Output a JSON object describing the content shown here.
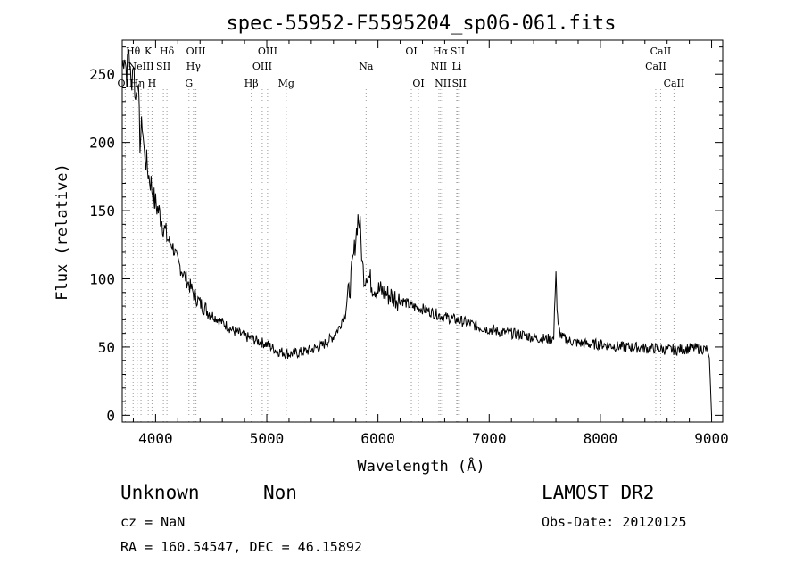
{
  "chart_data": {
    "type": "line",
    "title": "spec-55952-F5595204_sp06-061.fits",
    "xlabel": "Wavelength (Å)",
    "ylabel": "Flux (relative)",
    "xlim": [
      3700,
      9100
    ],
    "ylim": [
      -5,
      275
    ],
    "xticks": [
      4000,
      5000,
      6000,
      7000,
      8000,
      9000
    ],
    "yticks": [
      0,
      50,
      100,
      150,
      200,
      250
    ],
    "grid": false,
    "series": [
      {
        "x": [
          3700,
          3720,
          3740,
          3760,
          3780,
          3800,
          3820,
          3840,
          3860,
          3880,
          3900,
          3920,
          3940,
          3960,
          3980,
          4000,
          4050,
          4100,
          4150,
          4200,
          4250,
          4300,
          4350,
          4400,
          4500,
          4600,
          4700,
          4800,
          4900,
          5000,
          5100,
          5200,
          5300,
          5400,
          5500,
          5600,
          5650,
          5700,
          5750,
          5800,
          5820,
          5840,
          5860,
          5880,
          5900,
          5950,
          6000,
          6100,
          6200,
          6300,
          6400,
          6500,
          6600,
          6700,
          6800,
          6900,
          7000,
          7100,
          7200,
          7300,
          7400,
          7500,
          7580,
          7600,
          7610,
          7620,
          7640,
          7660,
          7700,
          7800,
          7900,
          8000,
          8100,
          8200,
          8300,
          8400,
          8500,
          8600,
          8700,
          8800,
          8900,
          8960,
          8980,
          9000
        ],
        "y": [
          255,
          265,
          250,
          270,
          240,
          260,
          230,
          250,
          200,
          215,
          190,
          185,
          175,
          170,
          160,
          155,
          145,
          130,
          125,
          112,
          104,
          96,
          88,
          82,
          74,
          68,
          62,
          58,
          55,
          52,
          47,
          45,
          46,
          48,
          51,
          58,
          64,
          75,
          95,
          130,
          145,
          138,
          110,
          100,
          105,
          95,
          92,
          88,
          85,
          80,
          78,
          75,
          72,
          70,
          68,
          65,
          63,
          61,
          60,
          59,
          57,
          56,
          56,
          108,
          78,
          65,
          60,
          57,
          55,
          53,
          52,
          52,
          51,
          50,
          50,
          49,
          49,
          48,
          48,
          49,
          49,
          48,
          42,
          0
        ]
      }
    ],
    "annotations": [
      {
        "x": 3727,
        "label": "OII",
        "row": 3
      },
      {
        "x": 3798,
        "label": "Hθ",
        "row": 1
      },
      {
        "x": 3835,
        "label": "Hη",
        "row": 3
      },
      {
        "x": 3869,
        "label": "NeIII",
        "row": 2
      },
      {
        "x": 3934,
        "label": "K",
        "row": 1
      },
      {
        "x": 3968,
        "label": "H",
        "row": 3
      },
      {
        "x": 4070,
        "label": "SII",
        "row": 2
      },
      {
        "x": 4102,
        "label": "Hδ",
        "row": 1
      },
      {
        "x": 4300,
        "label": "G",
        "row": 3
      },
      {
        "x": 4341,
        "label": "Hγ",
        "row": 2
      },
      {
        "x": 4363,
        "label": "OIII",
        "row": 1
      },
      {
        "x": 4861,
        "label": "Hβ",
        "row": 3
      },
      {
        "x": 4959,
        "label": "OIII",
        "row": 2
      },
      {
        "x": 5007,
        "label": "OIII",
        "row": 1
      },
      {
        "x": 5175,
        "label": "Mg",
        "row": 3
      },
      {
        "x": 5893,
        "label": "Na",
        "row": 2
      },
      {
        "x": 6300,
        "label": "OI",
        "row": 1
      },
      {
        "x": 6364,
        "label": "OI",
        "row": 3
      },
      {
        "x": 6548,
        "label": "NII",
        "row": 2
      },
      {
        "x": 6563,
        "label": "Hα",
        "row": 1
      },
      {
        "x": 6583,
        "label": "NII",
        "row": 3
      },
      {
        "x": 6708,
        "label": "Li",
        "row": 2
      },
      {
        "x": 6717,
        "label": "SII",
        "row": 1
      },
      {
        "x": 6731,
        "label": "SII",
        "row": 3
      },
      {
        "x": 8498,
        "label": "CaII",
        "row": 2
      },
      {
        "x": 8542,
        "label": "CaII",
        "row": 1
      },
      {
        "x": 8662,
        "label": "CaII",
        "row": 3
      }
    ]
  },
  "info": {
    "class_label": "Unknown",
    "subclass_label": "Non",
    "survey": "LAMOST DR2",
    "cz": "cz = NaN",
    "obs_date": "Obs-Date: 20120125",
    "coords": "RA = 160.54547, DEC =  46.15892"
  }
}
